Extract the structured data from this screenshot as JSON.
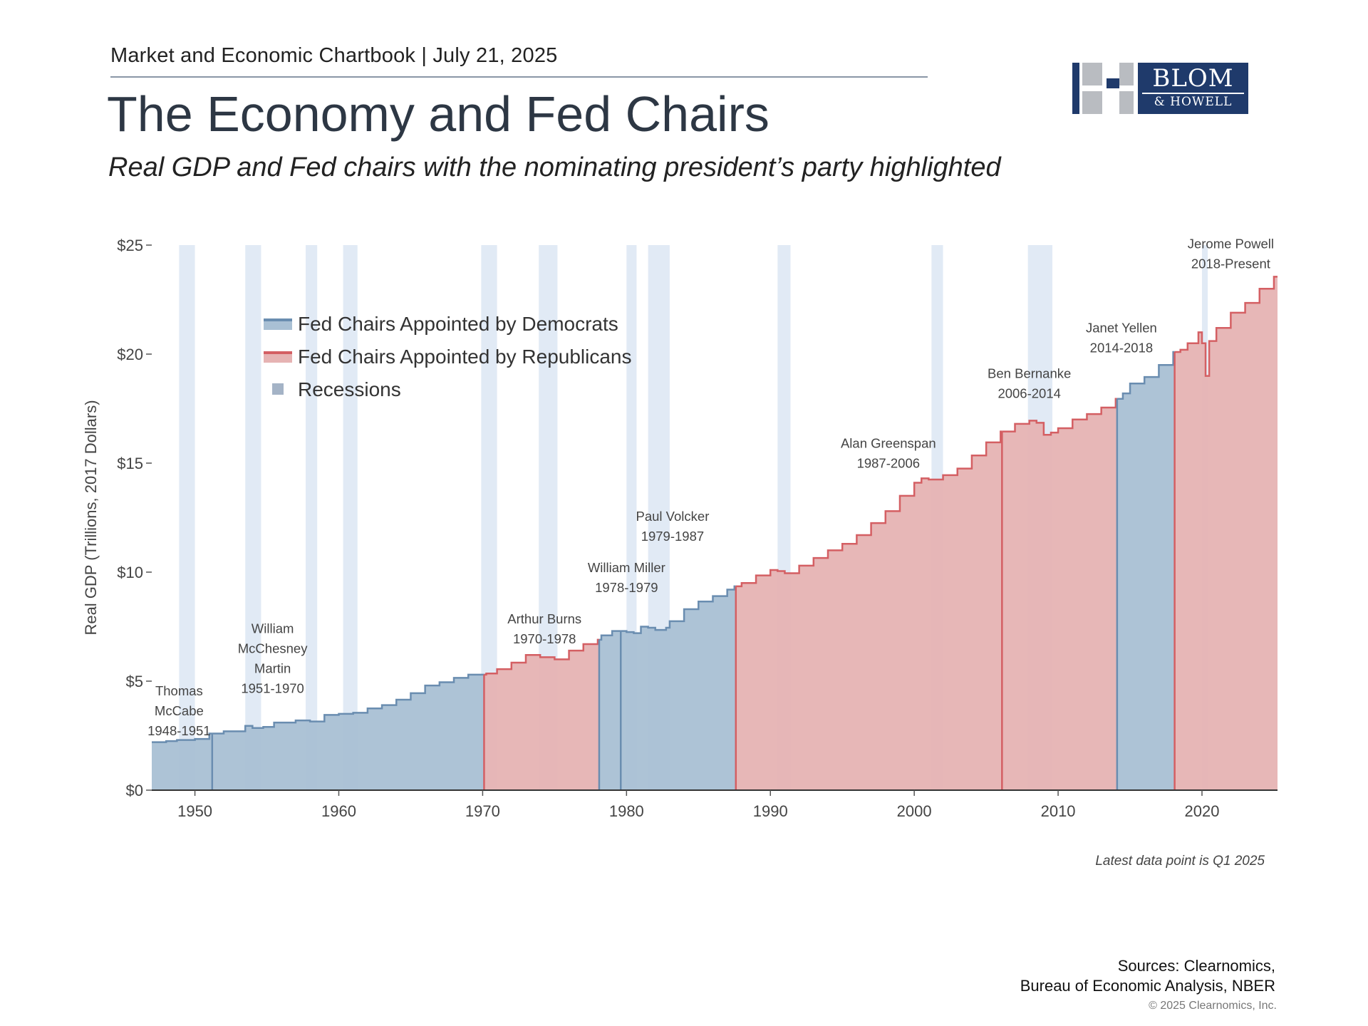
{
  "header": {
    "chartbook_line": "Market and Economic Chartbook | July 21, 2025",
    "title": "The Economy and Fed Chairs",
    "subtitle": "Real GDP and Fed chairs with the nominating president’s party highlighted"
  },
  "logo": {
    "word1": "BLOM",
    "word2": "& HOWELL",
    "brand_color": "#1f3a6b"
  },
  "footer": {
    "latest_note": "Latest data point is Q1 2025",
    "sources_line1": "Sources: Clearnomics,",
    "sources_line2": "Bureau of Economic Analysis, NBER",
    "copyright": "© 2025 Clearnomics, Inc."
  },
  "chart_data": {
    "type": "area",
    "ylabel": "Real GDP (Trillions, 2017 Dollars)",
    "xlim": [
      1947,
      2025.25
    ],
    "ylim": [
      0,
      25
    ],
    "x_ticks": [
      1950,
      1960,
      1970,
      1980,
      1990,
      2000,
      2010,
      2020
    ],
    "x_tick_labels": [
      "1950",
      "1960",
      "1970",
      "1980",
      "1990",
      "2000",
      "2010",
      "2020"
    ],
    "y_ticks": [
      0,
      5,
      10,
      15,
      20,
      25
    ],
    "y_tick_labels": [
      "$0",
      "$5",
      "$10",
      "$15",
      "$20",
      "$25"
    ],
    "colors": {
      "democrat_fill": "#a9c0d4",
      "democrat_line": "#6a8db0",
      "republican_fill": "#e6b3b3",
      "republican_line": "#d45f63",
      "recession": "#c9d8ec"
    },
    "legend": {
      "placement": "upper-left",
      "items": [
        {
          "label": "Fed Chairs Appointed by Democrats",
          "key": "dem"
        },
        {
          "label": "Fed Chairs Appointed by Republicans",
          "key": "rep"
        },
        {
          "label": "Recessions",
          "key": "rec"
        }
      ]
    },
    "gdp_series": {
      "x": [
        1947,
        1948,
        1948.75,
        1950,
        1951,
        1952,
        1953.5,
        1954,
        1954.75,
        1955.5,
        1957,
        1958,
        1959,
        1960,
        1961,
        1962,
        1963,
        1964,
        1965,
        1966,
        1967,
        1968,
        1969,
        1970,
        1970.25,
        1971,
        1972,
        1973,
        1974,
        1975,
        1976,
        1977,
        1978,
        1978.25,
        1979,
        1980,
        1980.5,
        1981,
        1981.5,
        1982,
        1982.75,
        1983,
        1984,
        1985,
        1986,
        1987,
        1987.5,
        1988,
        1989,
        1990,
        1990.5,
        1991,
        1992,
        1993,
        1994,
        1995,
        1996,
        1997,
        1998,
        1999,
        2000,
        2000.5,
        2001,
        2002,
        2003,
        2004,
        2005,
        2006,
        2007,
        2008,
        2008.5,
        2009,
        2009.5,
        2010,
        2011,
        2012,
        2013,
        2014,
        2014.5,
        2015,
        2016,
        2017,
        2018,
        2018.5,
        2019,
        2019.75,
        2020,
        2020.25,
        2020.5,
        2021,
        2022,
        2023,
        2024,
        2025,
        2025.25
      ],
      "y": [
        2.2,
        2.25,
        2.3,
        2.35,
        2.6,
        2.7,
        2.95,
        2.85,
        2.9,
        3.1,
        3.2,
        3.15,
        3.45,
        3.5,
        3.55,
        3.75,
        3.9,
        4.15,
        4.45,
        4.8,
        4.95,
        5.15,
        5.3,
        5.3,
        5.35,
        5.55,
        5.85,
        6.2,
        6.1,
        6.0,
        6.4,
        6.7,
        6.9,
        7.1,
        7.3,
        7.25,
        7.2,
        7.5,
        7.45,
        7.35,
        7.45,
        7.75,
        8.3,
        8.65,
        8.9,
        9.2,
        9.35,
        9.5,
        9.85,
        10.1,
        10.05,
        9.95,
        10.3,
        10.65,
        11.0,
        11.3,
        11.7,
        12.25,
        12.8,
        13.5,
        14.1,
        14.3,
        14.25,
        14.45,
        14.75,
        15.35,
        15.95,
        16.45,
        16.8,
        16.95,
        16.85,
        16.3,
        16.4,
        16.6,
        17.0,
        17.25,
        17.55,
        17.95,
        18.2,
        18.65,
        18.95,
        19.5,
        20.1,
        20.2,
        20.5,
        21.0,
        20.5,
        19.0,
        20.6,
        21.2,
        21.9,
        22.35,
        23.0,
        23.55,
        23.6
      ]
    },
    "fed_chairs": [
      {
        "name_lines": [
          "Thomas",
          "McCabe",
          "1948-1951"
        ],
        "start": 1947,
        "end": 1951.2,
        "party": "dem"
      },
      {
        "name_lines": [
          "William",
          "McChesney",
          "Martin",
          "1951-1970"
        ],
        "start": 1951.2,
        "end": 1970.1,
        "party": "dem"
      },
      {
        "name_lines": [
          "Arthur Burns",
          "1970-1978"
        ],
        "start": 1970.1,
        "end": 1978.1,
        "party": "rep"
      },
      {
        "name_lines": [
          "William Miller",
          "1978-1979"
        ],
        "start": 1978.1,
        "end": 1979.6,
        "party": "dem"
      },
      {
        "name_lines": [
          "Paul Volcker",
          "1979-1987"
        ],
        "start": 1979.6,
        "end": 1987.6,
        "party": "dem"
      },
      {
        "name_lines": [
          "Alan Greenspan",
          "1987-2006"
        ],
        "start": 1987.6,
        "end": 2006.1,
        "party": "rep"
      },
      {
        "name_lines": [
          "Ben Bernanke",
          "2006-2014"
        ],
        "start": 2006.1,
        "end": 2014.1,
        "party": "rep"
      },
      {
        "name_lines": [
          "Janet Yellen",
          "2014-2018"
        ],
        "start": 2014.1,
        "end": 2018.1,
        "party": "dem"
      },
      {
        "name_lines": [
          "Jerome Powell",
          "2018-Present"
        ],
        "start": 2018.1,
        "end": 2025.25,
        "party": "rep"
      }
    ],
    "recessions": [
      [
        1948.9,
        1950.0
      ],
      [
        1953.5,
        1954.6
      ],
      [
        1957.7,
        1958.5
      ],
      [
        1960.3,
        1961.3
      ],
      [
        1969.9,
        1971.0
      ],
      [
        1973.9,
        1975.2
      ],
      [
        1980.0,
        1980.7
      ],
      [
        1981.5,
        1983.0
      ],
      [
        1990.5,
        1991.4
      ],
      [
        2001.2,
        2002.0
      ],
      [
        2007.9,
        2009.6
      ],
      [
        2020.0,
        2020.4
      ]
    ]
  }
}
